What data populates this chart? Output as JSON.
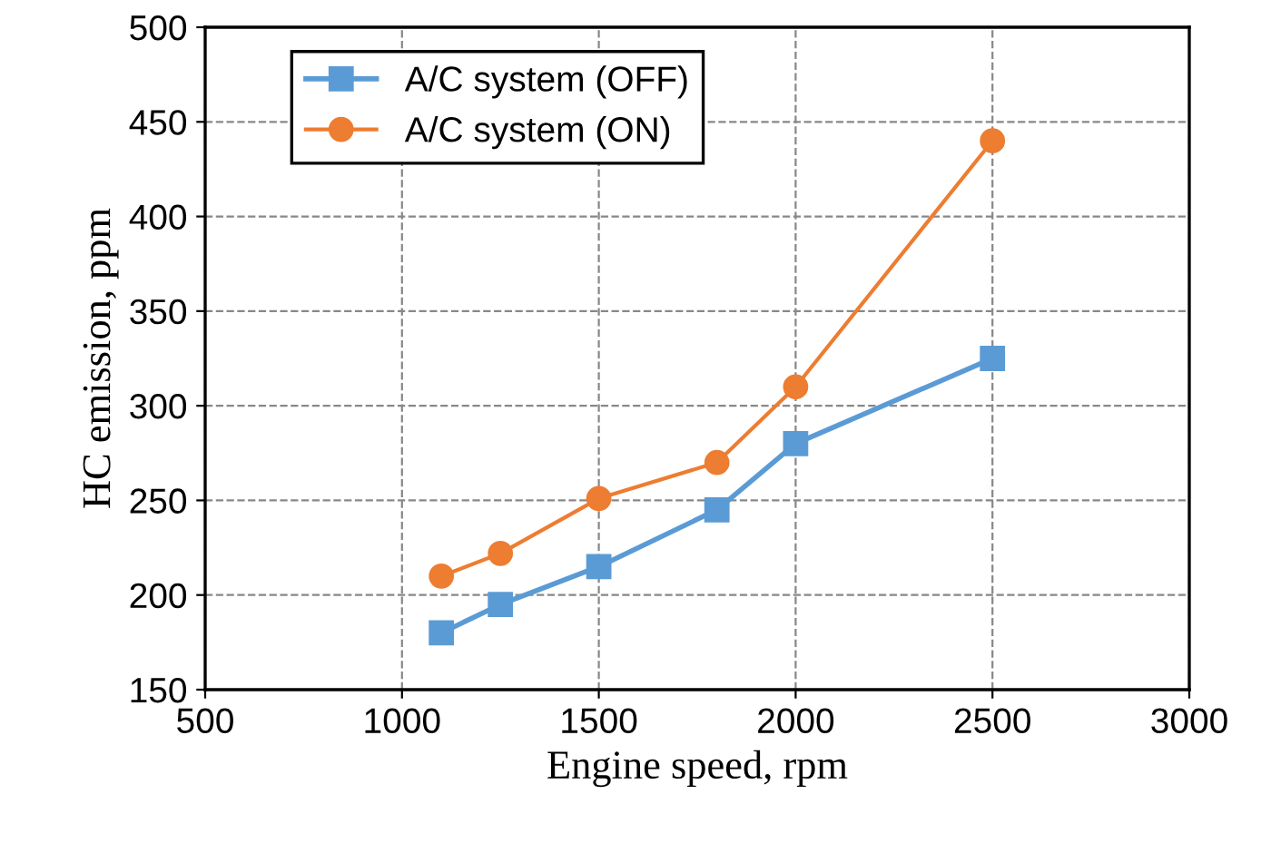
{
  "chart_data": {
    "type": "line",
    "xlabel": "Engine speed, rpm",
    "ylabel": "HC emission, ppm",
    "x": [
      1100,
      1250,
      1500,
      1800,
      2000,
      2500
    ],
    "series": [
      {
        "name": "A/C system (OFF)",
        "color": "#5b9bd5",
        "marker": "square",
        "values": [
          180,
          195,
          215,
          245,
          280,
          325
        ]
      },
      {
        "name": "A/C system (ON)",
        "color": "#ed7d31",
        "marker": "circle",
        "values": [
          210,
          222,
          251,
          270,
          310,
          440
        ]
      }
    ],
    "xlim": [
      500,
      3000
    ],
    "xticks": [
      500,
      1000,
      1500,
      2000,
      2500,
      3000
    ],
    "ylim": [
      150,
      500
    ],
    "yticks": [
      150,
      200,
      250,
      300,
      350,
      400,
      450,
      500
    ],
    "grid": true,
    "legend": "top left"
  }
}
